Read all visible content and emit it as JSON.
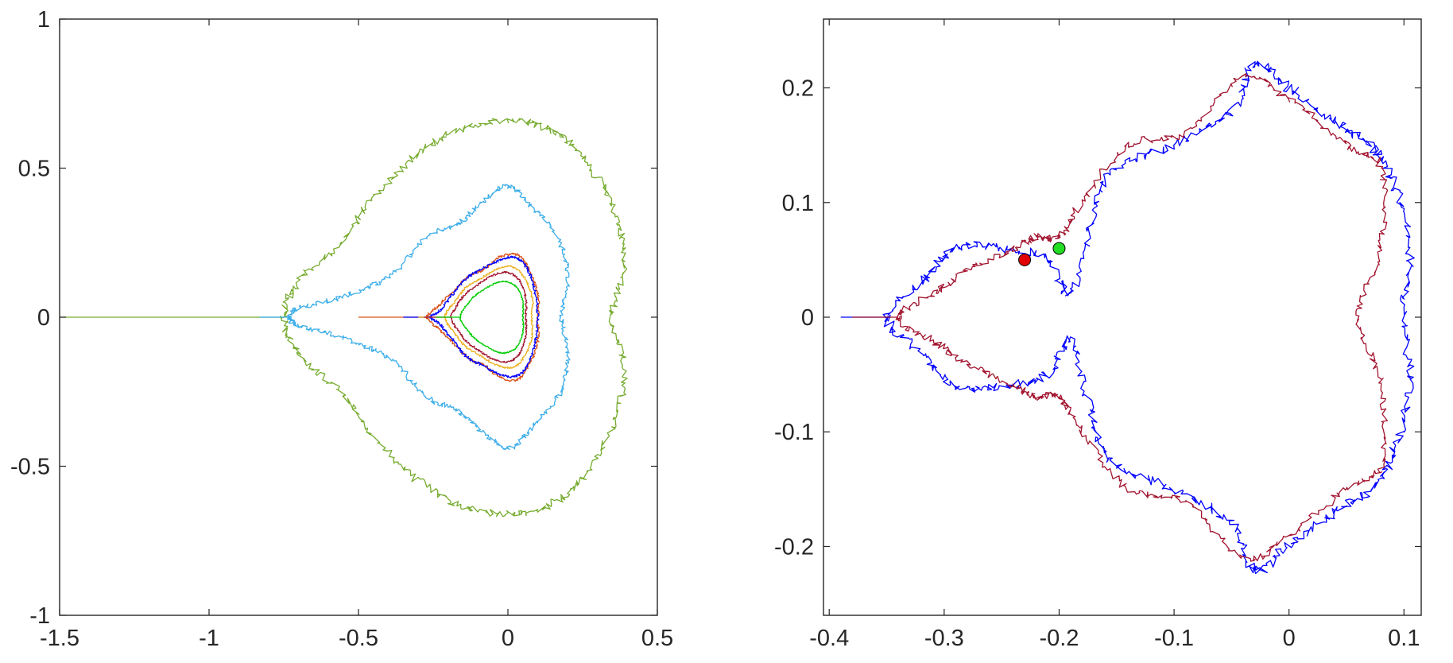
{
  "chart_data": [
    {
      "type": "line",
      "title": "",
      "xlabel": "",
      "ylabel": "",
      "xlim": [
        -1.5,
        0.5
      ],
      "ylim": [
        -1,
        1
      ],
      "grid": false,
      "xticks": [
        -1.5,
        -1,
        -0.5,
        0,
        0.5
      ],
      "xtick_labels": [
        "-1.5",
        "-1",
        "-0.5",
        "0",
        "0.5"
      ],
      "yticks": [
        -1,
        -0.5,
        0,
        0.5,
        1
      ],
      "ytick_labels": [
        "-1",
        "-0.5",
        "0",
        "0.5",
        "1"
      ],
      "series": [
        {
          "color": "#77ac30",
          "scale": 0.25,
          "cx": 0.0,
          "cy": 0.0,
          "amp": 0.012,
          "tail": -1.5,
          "points": [
            [
              0.35,
              0.0
            ],
            [
              0.39,
              0.18
            ],
            [
              0.35,
              0.37
            ],
            [
              0.25,
              0.54
            ],
            [
              0.14,
              0.63
            ],
            [
              0.0,
              0.66
            ],
            [
              -0.16,
              0.63
            ],
            [
              -0.31,
              0.54
            ],
            [
              -0.45,
              0.4
            ],
            [
              -0.56,
              0.25
            ],
            [
              -0.7,
              0.12
            ],
            [
              -0.75,
              0.0
            ]
          ]
        },
        {
          "color": "#3daee9",
          "scale": 0.13,
          "cx": 0.0,
          "cy": 0.0,
          "amp": 0.008,
          "tail": -0.83,
          "points": [
            [
              0.18,
              0.0
            ],
            [
              0.2,
              0.13
            ],
            [
              0.17,
              0.26
            ],
            [
              0.08,
              0.37
            ],
            [
              0.0,
              0.44
            ],
            [
              -0.09,
              0.38
            ],
            [
              -0.17,
              0.31
            ],
            [
              -0.27,
              0.27
            ],
            [
              -0.38,
              0.15
            ],
            [
              -0.47,
              0.1
            ],
            [
              -0.58,
              0.06
            ],
            [
              -0.7,
              0.03
            ],
            [
              -0.73,
              0.0
            ]
          ]
        },
        {
          "color": "#d95319",
          "scale": 0.055,
          "cx": 0.0,
          "cy": 0.0,
          "amp": 0.004,
          "tail": -0.5,
          "points": [
            [
              0.1,
              0.0
            ],
            [
              0.1,
              0.08
            ],
            [
              0.07,
              0.16
            ],
            [
              0.03,
              0.21
            ],
            [
              -0.03,
              0.2
            ],
            [
              -0.08,
              0.16
            ],
            [
              -0.13,
              0.14
            ],
            [
              -0.18,
              0.09
            ],
            [
              -0.23,
              0.04
            ],
            [
              -0.27,
              0.0
            ]
          ]
        },
        {
          "color": "#0000ff",
          "scale": 0.05,
          "cx": 0.0,
          "cy": 0.0,
          "amp": 0.004,
          "tail": -0.35,
          "points": [
            [
              0.1,
              0.0
            ],
            [
              0.09,
              0.09
            ],
            [
              0.06,
              0.17
            ],
            [
              0.02,
              0.2
            ],
            [
              -0.03,
              0.19
            ],
            [
              -0.09,
              0.16
            ],
            [
              -0.14,
              0.13
            ],
            [
              -0.19,
              0.07
            ],
            [
              -0.23,
              0.02
            ],
            [
              -0.26,
              0.0
            ]
          ]
        },
        {
          "color": "#edb120",
          "scale": 0.04,
          "cx": 0.0,
          "cy": 0.0,
          "amp": 0.003,
          "tail": -0.3,
          "points": [
            [
              0.08,
              0.0
            ],
            [
              0.08,
              0.07
            ],
            [
              0.05,
              0.14
            ],
            [
              0.01,
              0.17
            ],
            [
              -0.04,
              0.16
            ],
            [
              -0.09,
              0.13
            ],
            [
              -0.14,
              0.1
            ],
            [
              -0.18,
              0.05
            ],
            [
              -0.21,
              0.0
            ]
          ]
        },
        {
          "color": "#a2142f",
          "scale": 0.035,
          "cx": 0.0,
          "cy": 0.0,
          "amp": 0.003,
          "tail": -0.28,
          "points": [
            [
              0.06,
              0.0
            ],
            [
              0.06,
              0.06
            ],
            [
              0.04,
              0.12
            ],
            [
              0.0,
              0.15
            ],
            [
              -0.05,
              0.14
            ],
            [
              -0.1,
              0.11
            ],
            [
              -0.14,
              0.08
            ],
            [
              -0.17,
              0.04
            ],
            [
              -0.19,
              0.0
            ]
          ]
        },
        {
          "color": "#00cc00",
          "scale": 0.03,
          "cx": 0.0,
          "cy": 0.0,
          "amp": 0.002,
          "tail": -0.24,
          "points": [
            [
              0.05,
              0.0
            ],
            [
              0.05,
              0.05
            ],
            [
              0.03,
              0.1
            ],
            [
              -0.01,
              0.12
            ],
            [
              -0.05,
              0.11
            ],
            [
              -0.1,
              0.08
            ],
            [
              -0.13,
              0.05
            ],
            [
              -0.16,
              0.0
            ]
          ]
        }
      ]
    },
    {
      "type": "line",
      "title": "",
      "xlabel": "",
      "ylabel": "",
      "xlim": [
        -0.405,
        0.115
      ],
      "ylim": [
        -0.26,
        0.26
      ],
      "grid": false,
      "xticks": [
        -0.4,
        -0.3,
        -0.2,
        -0.1,
        0,
        0.1
      ],
      "xtick_labels": [
        "-0.4",
        "-0.3",
        "-0.2",
        "-0.1",
        "0",
        "0.1"
      ],
      "yticks": [
        -0.2,
        -0.1,
        0,
        0.1,
        0.2
      ],
      "ytick_labels": [
        "-0.2",
        "-0.1",
        "0",
        "0.1",
        "0.2"
      ],
      "series": [
        {
          "color": "#0000ff",
          "scale": 0.05,
          "cx": 0.0,
          "cy": 0.0,
          "amp": 0.004,
          "tail": -0.39,
          "points": [
            [
              0.1,
              0.0
            ],
            [
              0.105,
              0.06
            ],
            [
              0.09,
              0.12
            ],
            [
              0.07,
              0.15
            ],
            [
              0.04,
              0.17
            ],
            [
              0.0,
              0.2
            ],
            [
              -0.03,
              0.22
            ],
            [
              -0.05,
              0.18
            ],
            [
              -0.1,
              0.15
            ],
            [
              -0.15,
              0.13
            ],
            [
              -0.17,
              0.09
            ],
            [
              -0.19,
              0.02
            ],
            [
              -0.21,
              0.05
            ],
            [
              -0.25,
              0.06
            ],
            [
              -0.29,
              0.06
            ],
            [
              -0.32,
              0.03
            ],
            [
              -0.35,
              0.0
            ]
          ]
        },
        {
          "color": "#a2142f",
          "scale": 0.045,
          "cx": 0.0,
          "cy": 0.0,
          "amp": 0.003,
          "tail": -0.38,
          "points": [
            [
              0.06,
              0.0
            ],
            [
              0.08,
              0.06
            ],
            [
              0.08,
              0.13
            ],
            [
              0.05,
              0.15
            ],
            [
              0.0,
              0.19
            ],
            [
              -0.04,
              0.21
            ],
            [
              -0.09,
              0.16
            ],
            [
              -0.14,
              0.15
            ],
            [
              -0.18,
              0.1
            ],
            [
              -0.2,
              0.07
            ],
            [
              -0.22,
              0.07
            ],
            [
              -0.24,
              0.06
            ],
            [
              -0.28,
              0.04
            ],
            [
              -0.31,
              0.02
            ],
            [
              -0.34,
              0.0
            ]
          ]
        }
      ],
      "markers": [
        {
          "x": -0.23,
          "y": 0.05,
          "color": "#e00000"
        },
        {
          "x": -0.2,
          "y": 0.06,
          "color": "#22dd22"
        }
      ]
    }
  ]
}
